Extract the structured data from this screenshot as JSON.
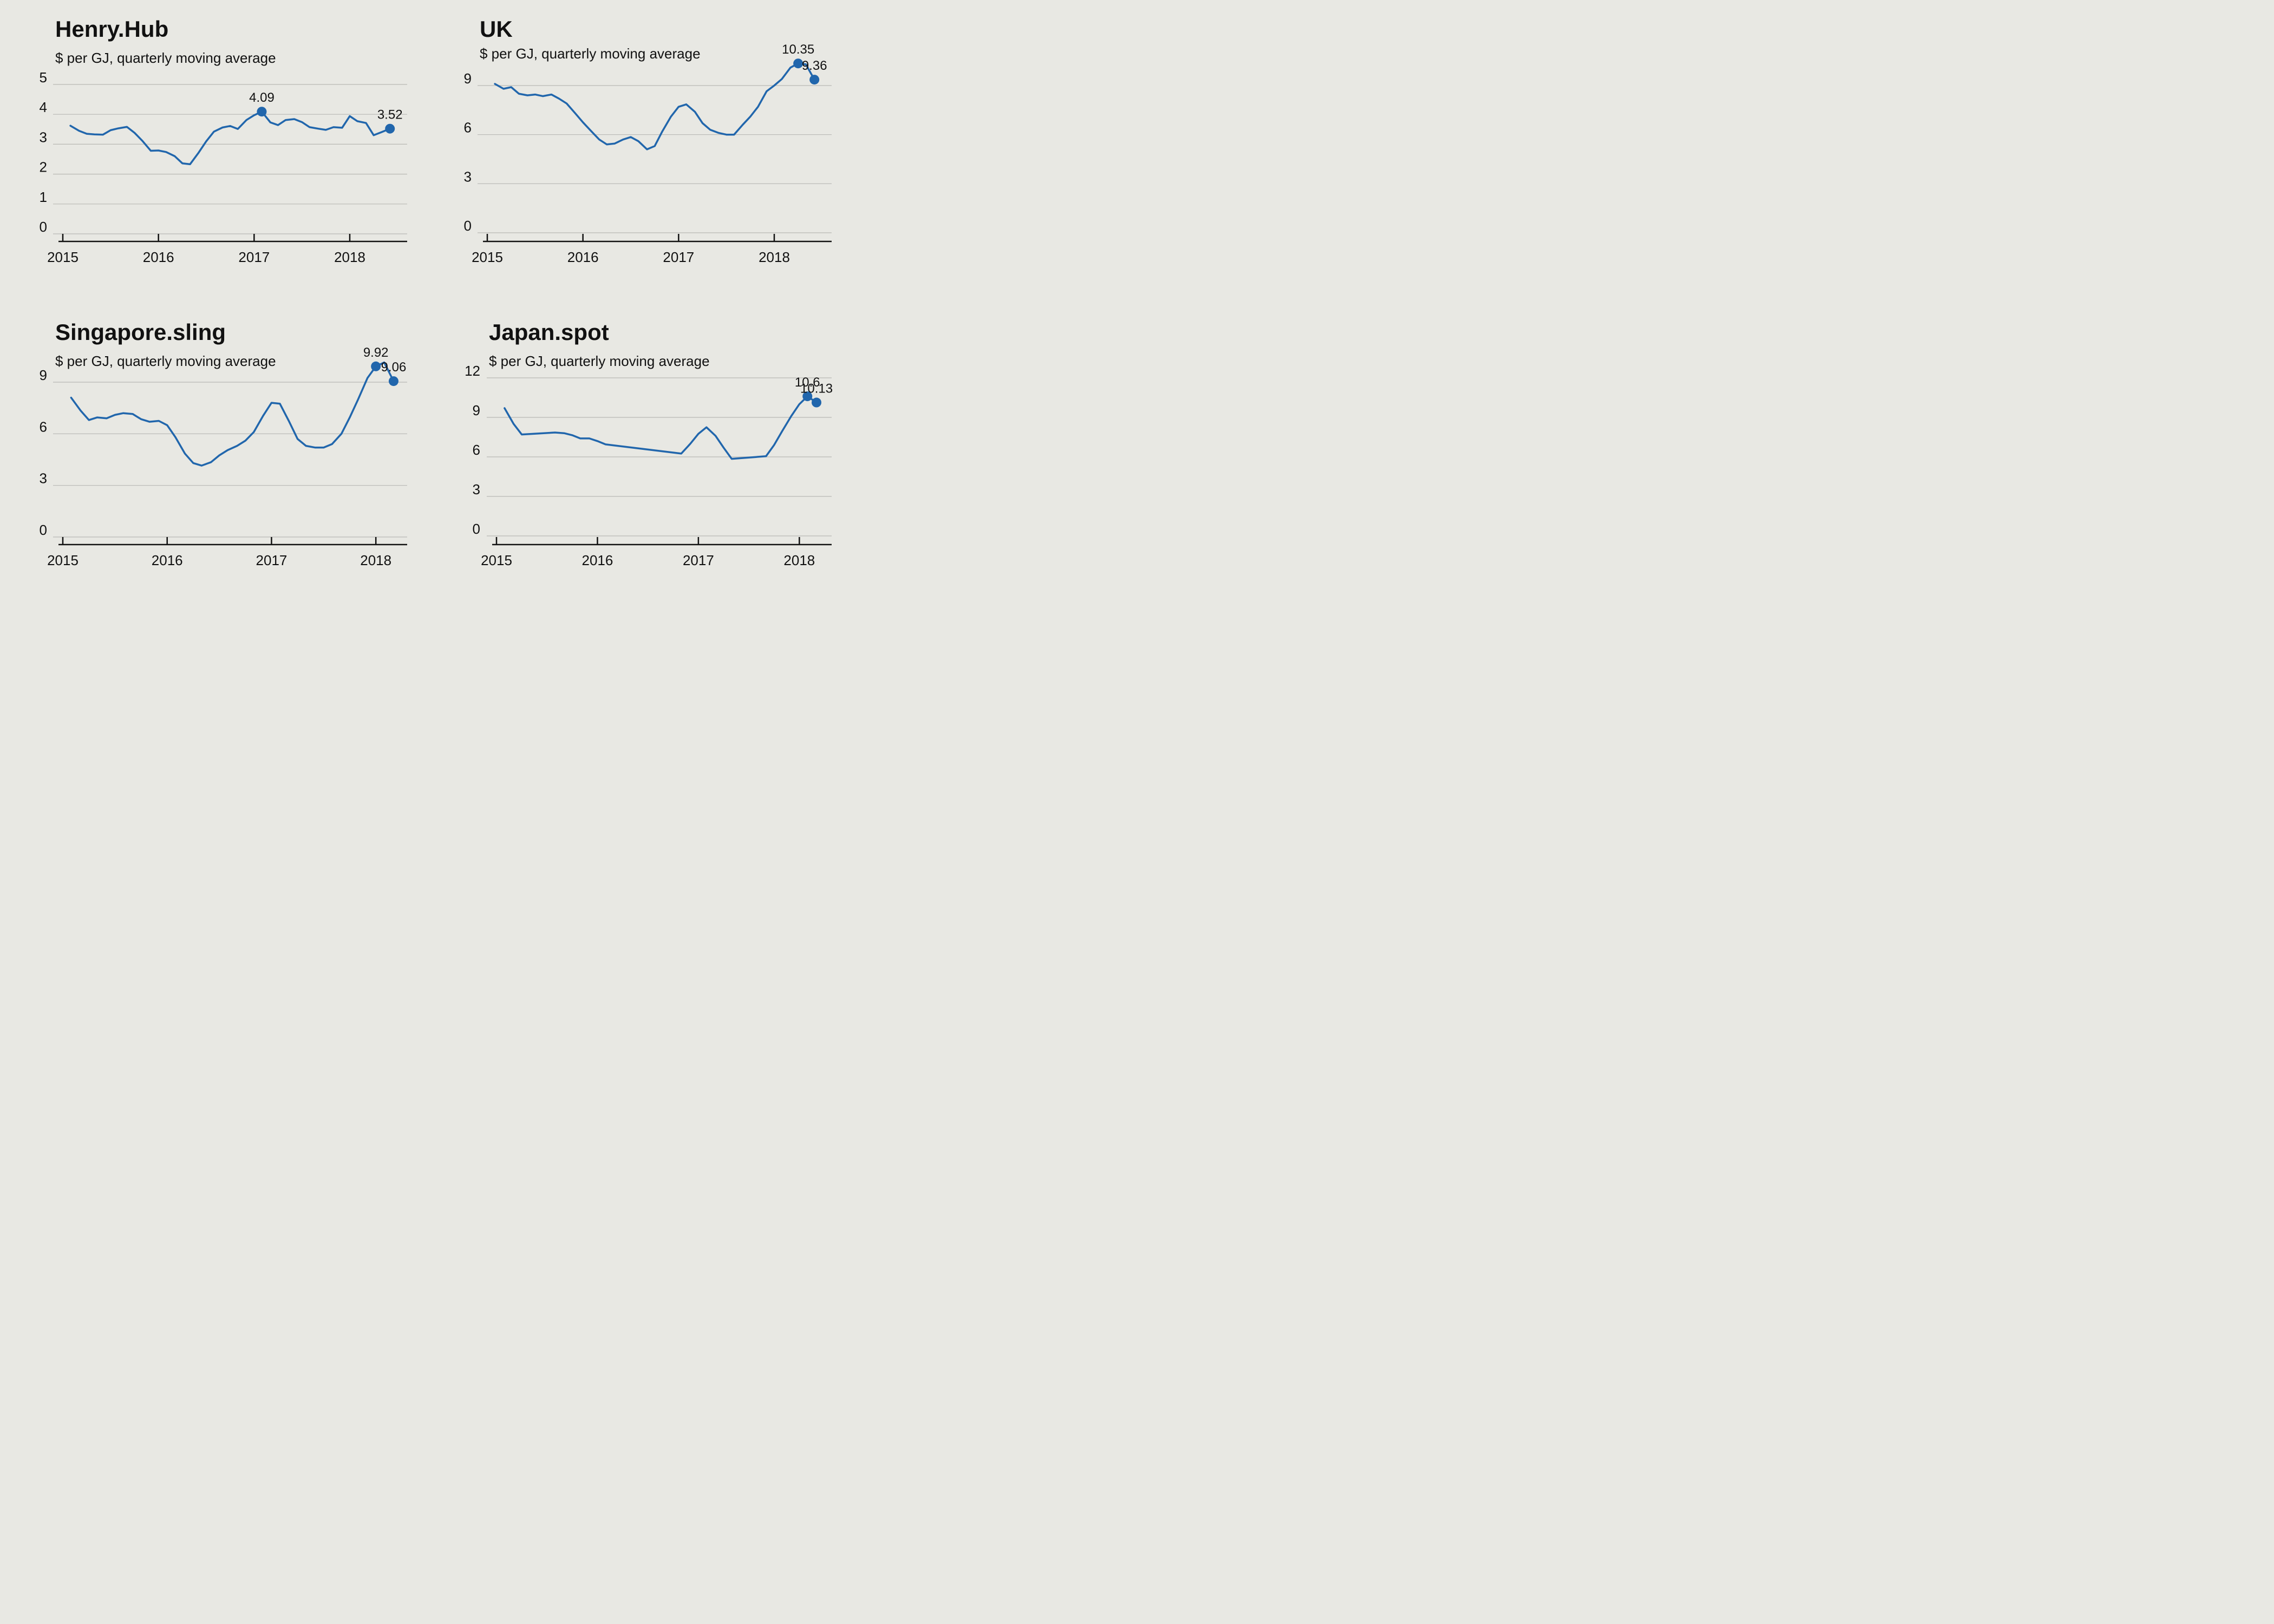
{
  "colors": {
    "background": "#e8e8e3",
    "line": "#2166ac",
    "grid": "#b9b9b4"
  },
  "chart_data": [
    {
      "type": "line",
      "title": "Henry.Hub",
      "subtitle": "$ per GJ, quarterly moving average",
      "xlim": [
        2015,
        2018.6
      ],
      "ylim": [
        0,
        5
      ],
      "yticks": [
        0,
        1,
        2,
        3,
        4,
        5
      ],
      "xticks": [
        2015,
        2016,
        2017,
        2018
      ],
      "grid": true,
      "x": [
        2015.08,
        2015.17,
        2015.25,
        2015.33,
        2015.42,
        2015.5,
        2015.58,
        2015.67,
        2015.75,
        2015.83,
        2015.92,
        2016.0,
        2016.08,
        2016.17,
        2016.25,
        2016.33,
        2016.42,
        2016.5,
        2016.58,
        2016.67,
        2016.75,
        2016.83,
        2016.92,
        2017.0,
        2017.08,
        2017.17,
        2017.25,
        2017.33,
        2017.42,
        2017.5,
        2017.58,
        2017.67,
        2017.75,
        2017.83,
        2017.92,
        2018.0,
        2018.08,
        2018.17,
        2018.25,
        2018.33,
        2018.42
      ],
      "y": [
        3.62,
        3.45,
        3.35,
        3.33,
        3.32,
        3.47,
        3.53,
        3.58,
        3.38,
        3.12,
        2.78,
        2.79,
        2.74,
        2.6,
        2.36,
        2.33,
        2.72,
        3.1,
        3.42,
        3.56,
        3.61,
        3.51,
        3.81,
        3.97,
        4.09,
        3.73,
        3.64,
        3.81,
        3.84,
        3.74,
        3.57,
        3.52,
        3.48,
        3.57,
        3.55,
        3.94,
        3.77,
        3.71,
        3.3,
        3.4,
        3.52
      ],
      "annotations": [
        {
          "x": 2017.08,
          "y": 4.09,
          "label": "4.09"
        },
        {
          "x": 2018.42,
          "y": 3.52,
          "label": "3.52"
        }
      ]
    },
    {
      "type": "line",
      "title": "UK",
      "subtitle": "$ per GJ, quarterly moving average",
      "xlim": [
        2015,
        2018.6
      ],
      "ylim": [
        0,
        11
      ],
      "yticks": [
        0,
        3,
        6,
        9
      ],
      "xticks": [
        2015,
        2016,
        2017,
        2018
      ],
      "grid": true,
      "x": [
        2015.08,
        2015.17,
        2015.25,
        2015.33,
        2015.42,
        2015.5,
        2015.58,
        2015.67,
        2015.75,
        2015.83,
        2015.92,
        2016.0,
        2016.08,
        2016.17,
        2016.25,
        2016.33,
        2016.42,
        2016.5,
        2016.58,
        2016.67,
        2016.75,
        2016.83,
        2016.92,
        2017.0,
        2017.08,
        2017.17,
        2017.25,
        2017.33,
        2017.42,
        2017.5,
        2017.58,
        2017.67,
        2017.75,
        2017.83,
        2017.92,
        2018.0,
        2018.08,
        2018.17,
        2018.25,
        2018.33,
        2018.42
      ],
      "y": [
        9.1,
        8.8,
        8.9,
        8.5,
        8.4,
        8.45,
        8.35,
        8.45,
        8.2,
        7.9,
        7.3,
        6.75,
        6.25,
        5.7,
        5.4,
        5.45,
        5.7,
        5.85,
        5.6,
        5.1,
        5.3,
        6.2,
        7.1,
        7.7,
        7.85,
        7.4,
        6.7,
        6.3,
        6.1,
        6.0,
        6.0,
        6.6,
        7.1,
        7.7,
        8.65,
        9.0,
        9.4,
        10.1,
        10.35,
        10.3,
        9.36
      ],
      "annotations": [
        {
          "x": 2018.25,
          "y": 10.35,
          "label": "10.35"
        },
        {
          "x": 2018.42,
          "y": 9.36,
          "label": "9.36"
        }
      ]
    },
    {
      "type": "line",
      "title": "Singapore.sling",
      "subtitle": "$ per GJ, quarterly moving average",
      "xlim": [
        2015,
        2018.3
      ],
      "ylim": [
        0,
        11
      ],
      "yticks": [
        0,
        3,
        6,
        9
      ],
      "xticks": [
        2015,
        2016,
        2017,
        2018
      ],
      "grid": true,
      "x": [
        2015.08,
        2015.17,
        2015.25,
        2015.33,
        2015.42,
        2015.5,
        2015.58,
        2015.67,
        2015.75,
        2015.83,
        2015.92,
        2016.0,
        2016.08,
        2016.17,
        2016.25,
        2016.33,
        2016.42,
        2016.5,
        2016.58,
        2016.67,
        2016.75,
        2016.83,
        2016.92,
        2017.0,
        2017.08,
        2017.17,
        2017.25,
        2017.33,
        2017.42,
        2017.5,
        2017.58,
        2017.67,
        2017.75,
        2017.83,
        2017.92,
        2018.0,
        2018.08,
        2018.17
      ],
      "y": [
        8.1,
        7.35,
        6.8,
        6.95,
        6.9,
        7.1,
        7.2,
        7.15,
        6.85,
        6.7,
        6.75,
        6.5,
        5.8,
        4.85,
        4.3,
        4.15,
        4.35,
        4.75,
        5.05,
        5.3,
        5.6,
        6.1,
        7.05,
        7.8,
        7.75,
        6.7,
        5.7,
        5.3,
        5.2,
        5.2,
        5.4,
        6.0,
        6.95,
        8.0,
        9.25,
        9.92,
        10.15,
        9.06
      ],
      "annotations": [
        {
          "x": 2018.0,
          "y": 9.92,
          "label": "9.92"
        },
        {
          "x": 2018.17,
          "y": 9.06,
          "label": "9.06"
        }
      ]
    },
    {
      "type": "line",
      "title": "Japan.spot",
      "subtitle": "$ per GJ, quarterly moving average",
      "xlim": [
        2015,
        2018.32
      ],
      "ylim": [
        0,
        12
      ],
      "yticks": [
        0,
        3,
        6,
        9,
        12
      ],
      "xticks": [
        2015,
        2016,
        2017,
        2018
      ],
      "grid": true,
      "x": [
        2015.08,
        2015.17,
        2015.25,
        2015.58,
        2015.67,
        2015.75,
        2015.83,
        2015.92,
        2016.0,
        2016.08,
        2016.83,
        2016.92,
        2017.0,
        2017.08,
        2017.17,
        2017.25,
        2017.33,
        2017.67,
        2017.75,
        2017.83,
        2017.92,
        2018.0,
        2018.08,
        2018.17
      ],
      "y": [
        9.7,
        8.5,
        7.7,
        7.85,
        7.8,
        7.65,
        7.4,
        7.4,
        7.2,
        6.95,
        6.25,
        7.0,
        7.75,
        8.25,
        7.6,
        6.7,
        5.85,
        6.05,
        6.9,
        7.95,
        9.1,
        10.0,
        10.6,
        10.13
      ],
      "annotations": [
        {
          "x": 2018.08,
          "y": 10.6,
          "label": "10.6"
        },
        {
          "x": 2018.17,
          "y": 10.13,
          "label": "10.13"
        }
      ]
    }
  ]
}
